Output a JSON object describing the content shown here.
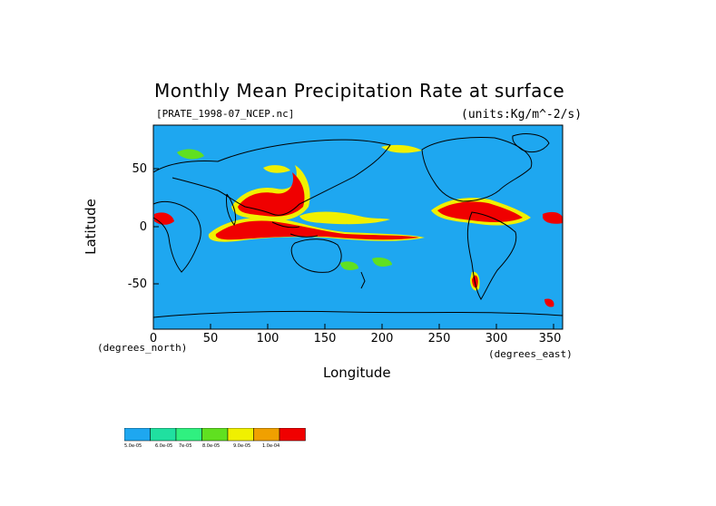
{
  "title": "Monthly Mean Precipitation Rate at surface",
  "file_label": "[PRATE_1998-07_NCEP.nc]",
  "units_label": "(units:Kg/m^-2/s)",
  "xlabel": "Longitude",
  "ylabel": "Latitude",
  "x_units": "(degrees_east)",
  "y_units": "(degrees_north)",
  "x_ticks": [
    "0",
    "50",
    "100",
    "150",
    "200",
    "250",
    "300",
    "350"
  ],
  "y_ticks": [
    "50",
    "0",
    "-50"
  ],
  "legend": {
    "colors": [
      "#1ea7f0",
      "#20e0a0",
      "#30f080",
      "#60e020",
      "#f0f000",
      "#f0a000",
      "#f00000"
    ],
    "labels": [
      "5.0e-05",
      "6.0e-05",
      "7e-05",
      "8.0e-05",
      "9.0e-05",
      "1.0e-04",
      ""
    ]
  },
  "colors": {
    "ocean_field": "#1ea7f0",
    "high": "#f00000",
    "mid": "#f0f000",
    "low": "#60e020"
  }
}
